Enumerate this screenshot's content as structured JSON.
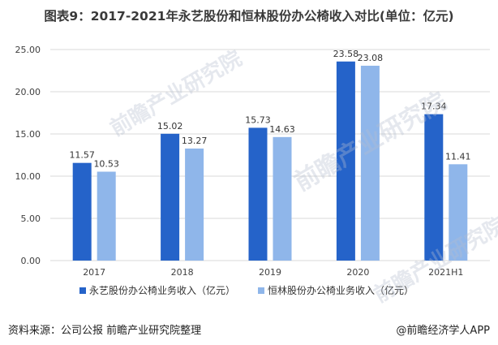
{
  "title": "图表9：2017-2021年永艺股份和恒林股份办公椅收入对比(单位：亿元)",
  "footer": {
    "source": "资料来源：公司公报 前瞻产业研究院整理",
    "brand": "@前瞻经济学人APP"
  },
  "watermark": {
    "text": "前瞻产业研究院"
  },
  "colors": {
    "series1": "#2563c9",
    "series2": "#8fb6ea",
    "grid": "#d9d9d9",
    "label": "#404040"
  },
  "chart_data": {
    "type": "bar",
    "categories": [
      "2017",
      "2018",
      "2019",
      "2020",
      "2021H1"
    ],
    "series": [
      {
        "name": "永艺股份办公椅业务收入（亿元）",
        "values": [
          11.57,
          15.02,
          15.73,
          23.58,
          17.34
        ]
      },
      {
        "name": "恒林股份办公椅业务收入（亿元）",
        "values": [
          10.53,
          13.27,
          14.63,
          23.08,
          11.41
        ]
      }
    ],
    "ylim": [
      0,
      25
    ],
    "yticks": [
      "0.00",
      "5.00",
      "10.00",
      "15.00",
      "20.00",
      "25.00"
    ],
    "grid": true,
    "legend_position": "bottom"
  }
}
